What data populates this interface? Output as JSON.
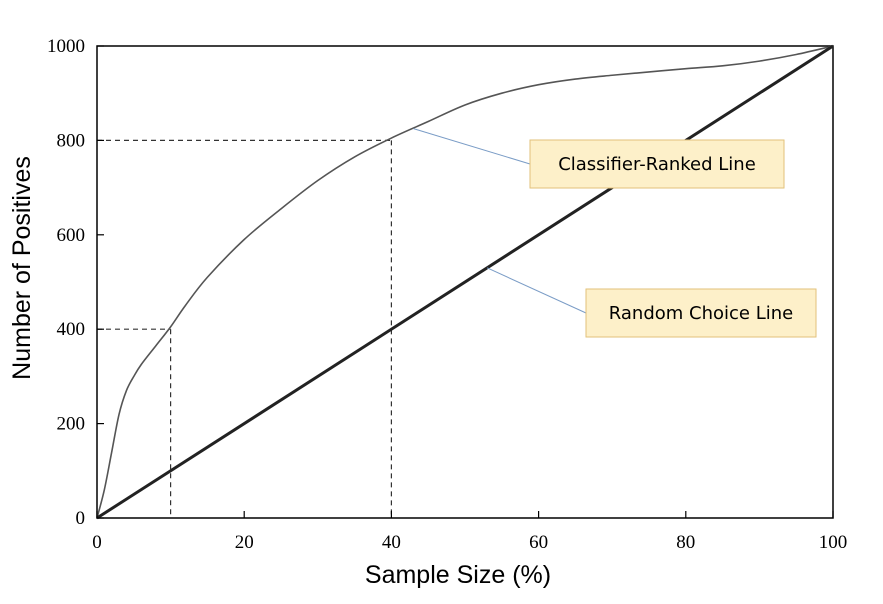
{
  "chart_data": {
    "type": "line",
    "xlabel": "Sample Size (%)",
    "ylabel": "Number of Positives",
    "xlim": [
      0,
      100
    ],
    "ylim": [
      0,
      1000
    ],
    "x_ticks": [
      0,
      20,
      40,
      60,
      80,
      100
    ],
    "y_ticks": [
      0,
      200,
      400,
      600,
      800,
      1000
    ],
    "series": [
      {
        "name": "Classifier-Ranked Line",
        "x": [
          0,
          1,
          2,
          3,
          4,
          5,
          6,
          8,
          10,
          12,
          15,
          20,
          25,
          30,
          35,
          40,
          45,
          50,
          55,
          60,
          65,
          70,
          75,
          80,
          85,
          90,
          95,
          100
        ],
        "y": [
          0,
          60,
          140,
          220,
          270,
          300,
          325,
          365,
          405,
          450,
          510,
          590,
          655,
          715,
          765,
          805,
          840,
          875,
          900,
          918,
          930,
          938,
          945,
          952,
          958,
          968,
          982,
          1000
        ]
      },
      {
        "name": "Random Choice Line",
        "x": [
          0,
          100
        ],
        "y": [
          0,
          1000
        ]
      }
    ],
    "reference_points": [
      {
        "x": 10,
        "y": 400
      },
      {
        "x": 40,
        "y": 800
      }
    ],
    "annotations": [
      {
        "text": "Classifier-Ranked Line",
        "target_x": 43,
        "target_y": 825
      },
      {
        "text": "Random Choice Line",
        "target_x": 53,
        "target_y": 530
      }
    ],
    "colors": {
      "classifier": "#555555",
      "random": "#222222",
      "callout_fill": "#fdf0c9",
      "callout_border": "#e2c17a",
      "leader": "#7a9cc6"
    }
  }
}
